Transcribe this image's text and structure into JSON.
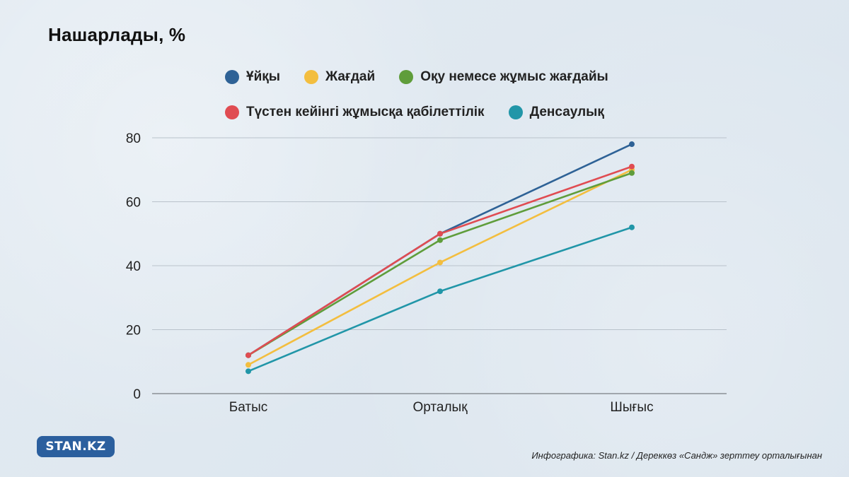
{
  "title": "Нашарлады, %",
  "legend": [
    {
      "label": "Ұйқы",
      "color": "#2e6296"
    },
    {
      "label": "Жағдай",
      "color": "#f3be3f"
    },
    {
      "label": "Оқу немесе жұмыс жағдайы",
      "color": "#5f9d3b"
    },
    {
      "label": "Түстен кейінгі жұмысқа қабілеттілік",
      "color": "#e04c52"
    },
    {
      "label": "Денсаулық",
      "color": "#2196a8"
    }
  ],
  "chart_data": {
    "type": "line",
    "x": [
      "Батыс",
      "Орталық",
      "Шығыс"
    ],
    "ylim": [
      0,
      80
    ],
    "yticks": [
      0,
      20,
      40,
      60,
      80
    ],
    "grid": true,
    "legend_position": "top",
    "series": [
      {
        "name": "Ұйқы",
        "color": "#2e6296",
        "values": [
          12,
          50,
          78
        ]
      },
      {
        "name": "Жағдай",
        "color": "#f3be3f",
        "values": [
          9,
          41,
          70
        ]
      },
      {
        "name": "Оқу немесе жұмыс жағдайы",
        "color": "#5f9d3b",
        "values": [
          12,
          48,
          69
        ]
      },
      {
        "name": "Түстен кейінгі жұмысқа қабілеттілік",
        "color": "#e04c52",
        "values": [
          12,
          50,
          71
        ]
      },
      {
        "name": "Денсаулық",
        "color": "#2196a8",
        "values": [
          7,
          32,
          52
        ]
      }
    ]
  },
  "logo_text": "STAN.KZ",
  "source": "Инфографика: Stan.kz / Дереккөз «Сандж» зерттеу орталығынан"
}
